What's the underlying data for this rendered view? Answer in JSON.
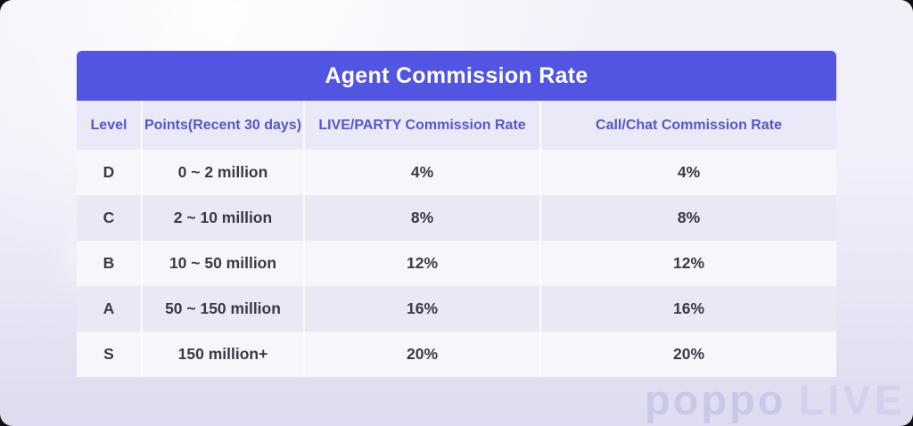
{
  "chart_data": {
    "type": "table",
    "title": "Agent Commission Rate",
    "columns": [
      "Level",
      "Points(Recent 30 days)",
      "LIVE/PARTY Commission Rate",
      "Call/Chat Commission Rate"
    ],
    "rows": [
      [
        "D",
        "0 ~ 2 million",
        "4%",
        "4%"
      ],
      [
        "C",
        "2 ~ 10 million",
        "8%",
        "8%"
      ],
      [
        "B",
        "10 ~ 50 million",
        "12%",
        "12%"
      ],
      [
        "A",
        "50 ~ 150 million",
        "16%",
        "16%"
      ],
      [
        "S",
        "150 million+",
        "20%",
        "20%"
      ]
    ]
  },
  "watermark": {
    "brand": "poppo",
    "suffix": "LIVE"
  },
  "colors": {
    "title_bar_bg": "#5254e2",
    "title_text": "#ffffff",
    "column_header_bg": "#eae9f8",
    "column_header_text": "#5557c9",
    "row_light_bg": "#f7f7fb",
    "row_shaded_bg": "#e9e8f5",
    "body_text": "#3a3a44",
    "background_top": "#f2f1fa",
    "background_bottom": "#dddcf0"
  }
}
